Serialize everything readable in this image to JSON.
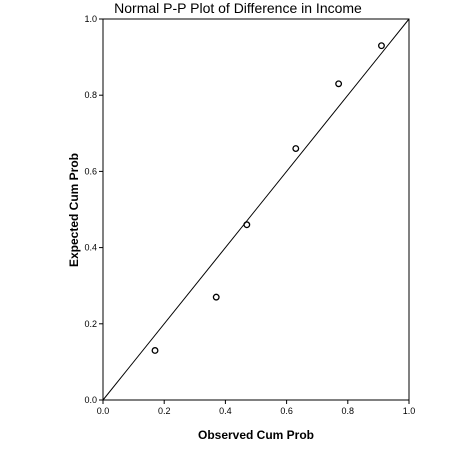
{
  "chart_data": {
    "type": "scatter",
    "title": "Normal P-P Plot of Difference in Income",
    "xlabel": "Observed Cum Prob",
    "ylabel": "Expected Cum Prob",
    "xlim": [
      0.0,
      1.0
    ],
    "ylim": [
      0.0,
      1.0
    ],
    "x_ticks": [
      "0.0",
      "0.2",
      "0.4",
      "0.6",
      "0.8",
      "1.0"
    ],
    "y_ticks": [
      "0.0",
      "0.2",
      "0.4",
      "0.6",
      "0.8",
      "1.0"
    ],
    "grid": false,
    "legend": "none",
    "reference_line": [
      [
        0.0,
        0.0
      ],
      [
        1.0,
        1.0
      ]
    ],
    "points": [
      {
        "x": 0.17,
        "y": 0.13
      },
      {
        "x": 0.37,
        "y": 0.27
      },
      {
        "x": 0.47,
        "y": 0.46
      },
      {
        "x": 0.63,
        "y": 0.66
      },
      {
        "x": 0.77,
        "y": 0.83
      },
      {
        "x": 0.91,
        "y": 0.93
      }
    ],
    "colors": {
      "axis": "#000000",
      "marker": "#000000",
      "background": "#ffffff"
    }
  }
}
